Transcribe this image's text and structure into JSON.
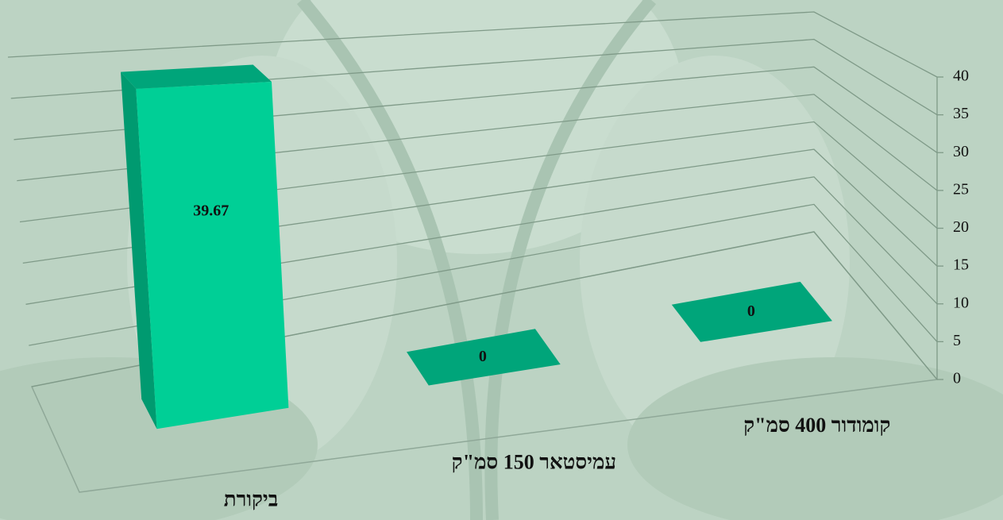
{
  "chart_data": {
    "type": "bar3d",
    "categories": [
      "ביקורת",
      "עמיסטאר 150 סמ\"ק",
      "קומודור 400 סמ\"ק"
    ],
    "values": [
      39.67,
      0,
      0
    ],
    "ylim": [
      0,
      40
    ],
    "yticks": [
      0,
      5,
      10,
      15,
      20,
      25,
      30,
      35,
      40
    ],
    "color": "#00cf96",
    "grid": true
  }
}
